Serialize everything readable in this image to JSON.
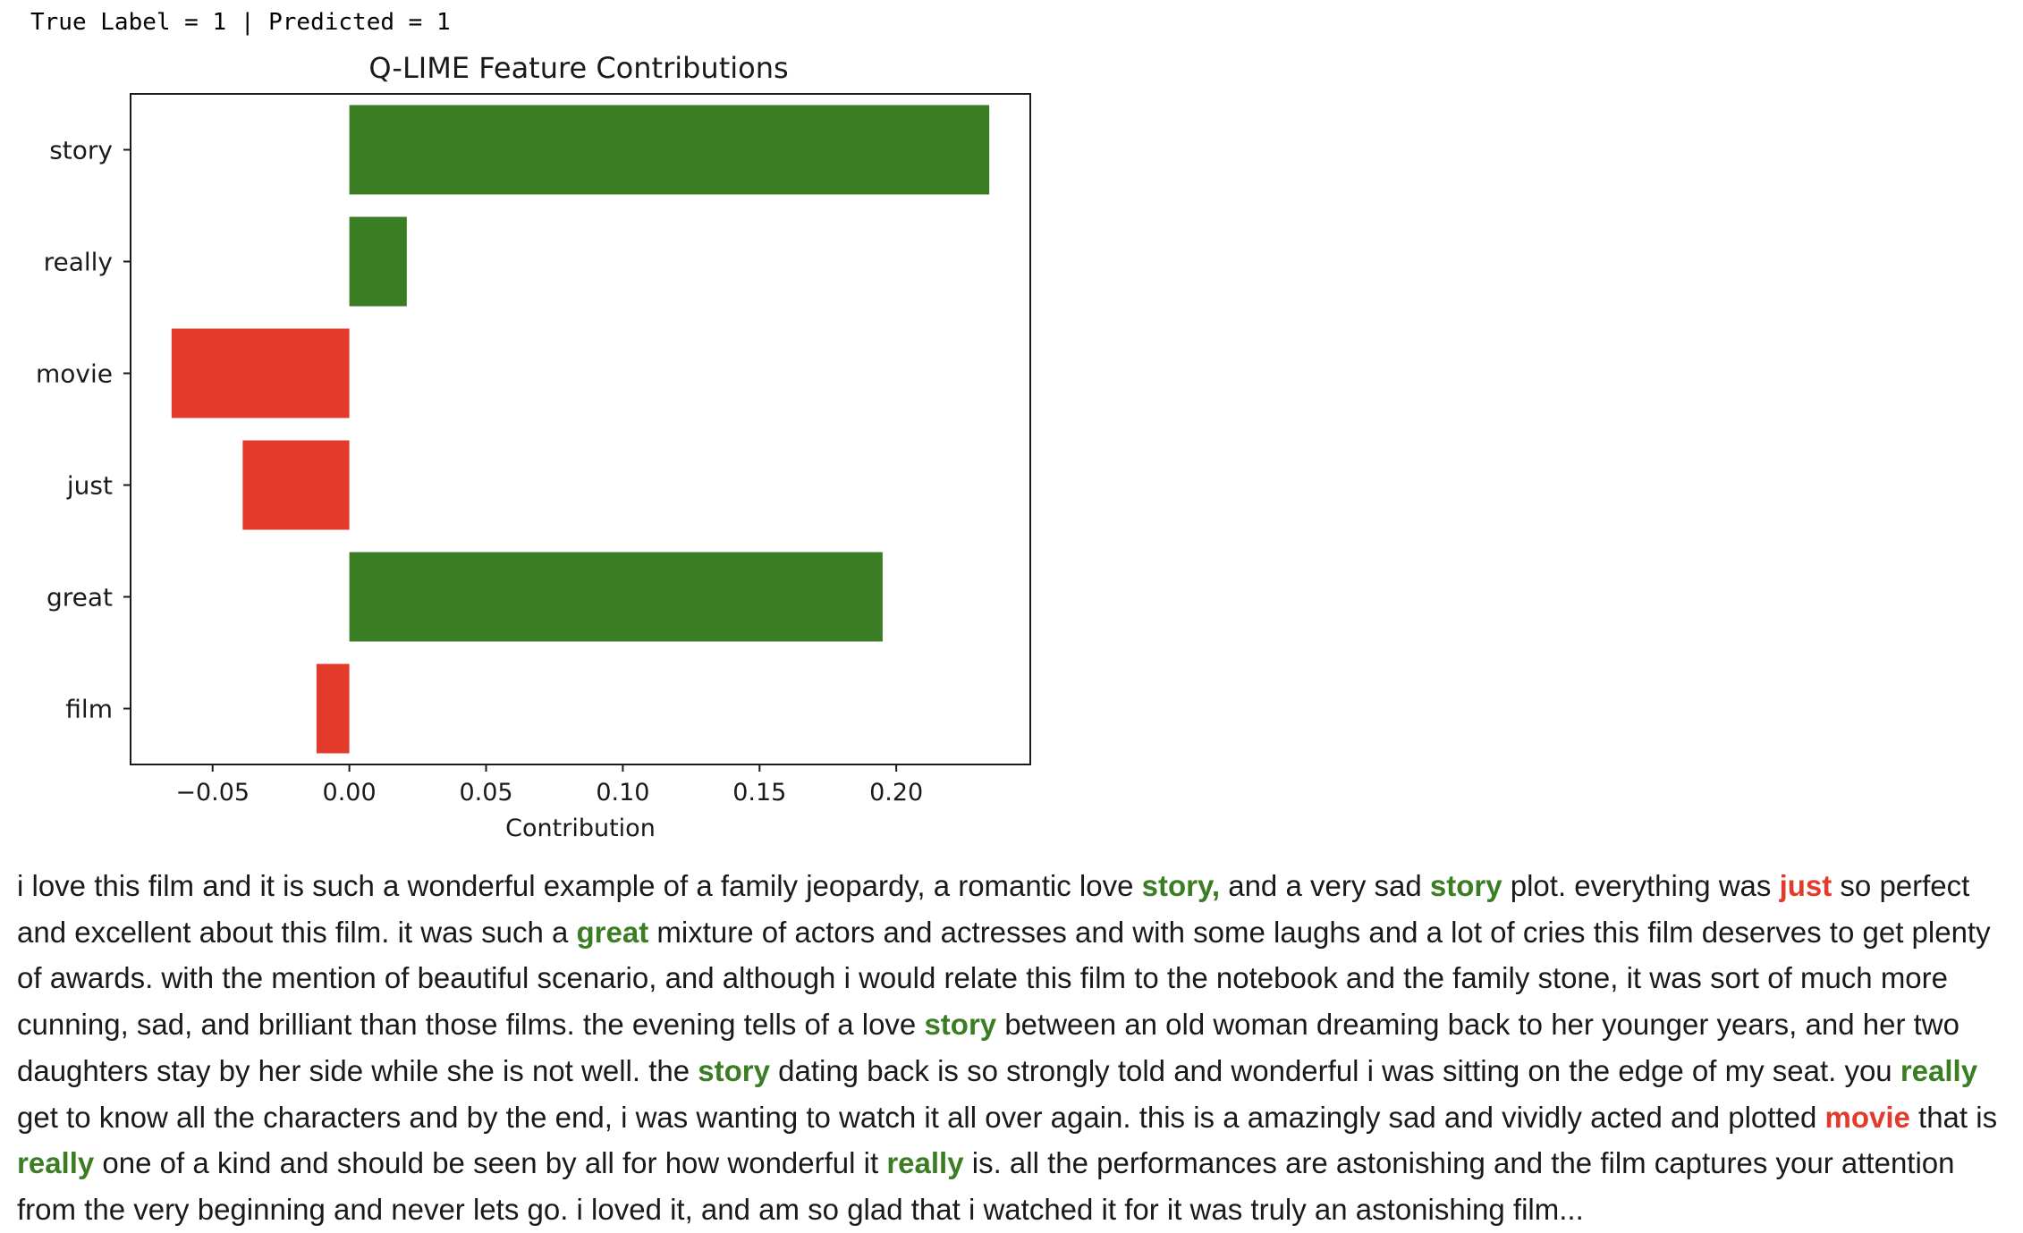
{
  "header": {
    "true_label_text": "True Label = 1",
    "separator": "|",
    "predicted_text": "Predicted = 1"
  },
  "colors": {
    "positive": "#3a7d22",
    "negative": "#e33a2b"
  },
  "chart_data": {
    "type": "bar",
    "orientation": "horizontal",
    "title": "Q-LIME Feature Contributions",
    "xlabel": "Contribution",
    "ylabel": "",
    "categories": [
      "story",
      "really",
      "movie",
      "just",
      "great",
      "film"
    ],
    "values": [
      0.234,
      0.021,
      -0.065,
      -0.039,
      0.195,
      -0.012
    ],
    "xlim": [
      -0.08,
      0.249
    ],
    "xticks": [
      -0.05,
      0.0,
      0.05,
      0.1,
      0.15,
      0.2
    ],
    "xtick_labels": [
      "−0.05",
      "0.00",
      "0.05",
      "0.10",
      "0.15",
      "0.20"
    ],
    "grid": false,
    "legend": "none"
  },
  "review": {
    "segments": [
      {
        "text": "i love this film and it is such a wonderful example of a family jeopardy, a romantic love ",
        "hl": ""
      },
      {
        "text": "story,",
        "hl": "pos"
      },
      {
        "text": " and a very sad ",
        "hl": ""
      },
      {
        "text": "story",
        "hl": "pos"
      },
      {
        "text": " plot. everything was ",
        "hl": ""
      },
      {
        "text": "just",
        "hl": "neg"
      },
      {
        "text": " so perfect and excellent about this film. it was such a ",
        "hl": ""
      },
      {
        "text": "great",
        "hl": "pos"
      },
      {
        "text": " mixture of actors and actresses and with some laughs and a lot of cries this film deserves to get plenty of awards. with the mention of beautiful scenario, and although i would relate this film to the notebook and the family stone, it was sort of much more cunning, sad, and brilliant than those films. the evening tells of a love ",
        "hl": ""
      },
      {
        "text": "story",
        "hl": "pos"
      },
      {
        "text": " between an old woman dreaming back to her younger years, and her two daughters stay by her side while she is not well. the ",
        "hl": ""
      },
      {
        "text": "story",
        "hl": "pos"
      },
      {
        "text": " dating back is so strongly told and wonderful i was sitting on the edge of my seat. you ",
        "hl": ""
      },
      {
        "text": "really",
        "hl": "pos"
      },
      {
        "text": " get to know all the characters and by the end, i was wanting to watch it all over again. this is a amazingly sad and vividly acted and plotted ",
        "hl": ""
      },
      {
        "text": "movie",
        "hl": "neg"
      },
      {
        "text": " that is ",
        "hl": ""
      },
      {
        "text": "really",
        "hl": "pos"
      },
      {
        "text": " one of a kind and should be seen by all for how wonderful it ",
        "hl": ""
      },
      {
        "text": "really",
        "hl": "pos"
      },
      {
        "text": " is. all the performances are astonishing and the film captures your attention from the very beginning and never lets go. i loved it, and am so glad that i watched it for it was truly an astonishing film...",
        "hl": ""
      }
    ]
  }
}
